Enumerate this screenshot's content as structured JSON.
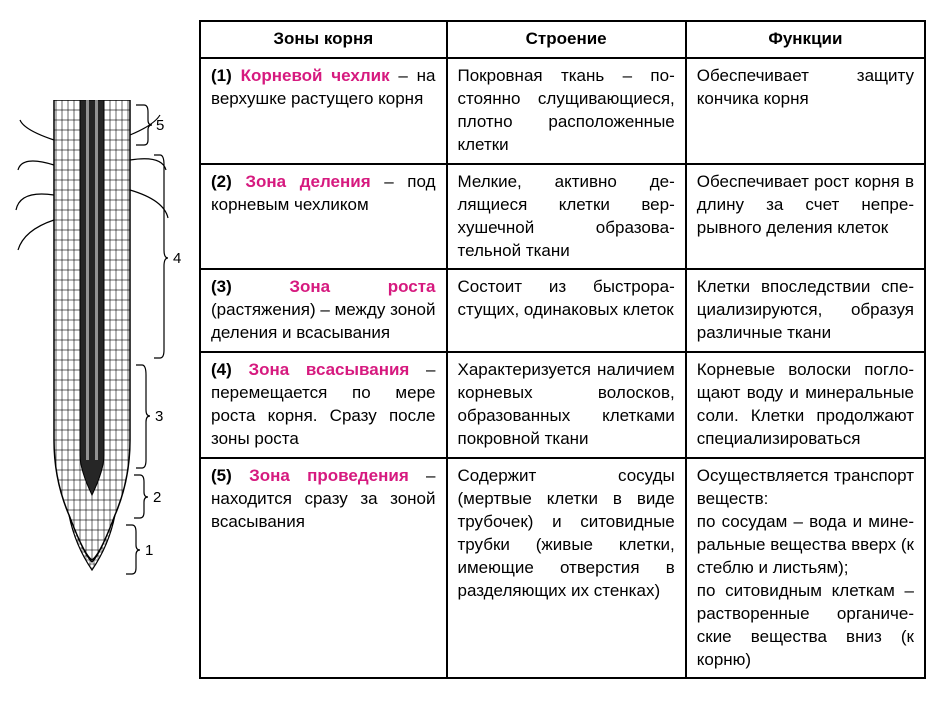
{
  "table": {
    "headers": [
      "Зоны корня",
      "Строение",
      "Функции"
    ],
    "rows": [
      {
        "num": "(1)",
        "name": "Корневой чех­лик",
        "tail": " – на верхушке растущего корня",
        "structure": "Покровная ткань – по­стоянно слущиваю­щиеся, плотно распо­ложенные клетки",
        "function": "Обеспечивает защиту кончика корня",
        "accent": true
      },
      {
        "num": "(2)",
        "name": "Зона деления",
        "tail": " – под корневым чех­ликом",
        "structure": "Мелкие, активно де­лящиеся клетки вер­хушечной образова­тельной ткани",
        "function": "Обеспечивает рост корня в длину за счет непре­рывного деления клеток",
        "accent": true
      },
      {
        "num": "(3)",
        "name": "Зона роста",
        "tail": " (растяжения) – ме­жду зоной деления и всасывания",
        "structure": "Состоит из быстрора­стущих, одинаковых клеток",
        "function": "Клетки впоследствии спе­циализируются, образуя различные ткани",
        "accent": true
      },
      {
        "num": "(4)",
        "name": "Зона всасыва­ния",
        "tail": " – перемещает­ся по мере роста корня. Сразу после зоны роста",
        "structure": "Характеризуется на­личием корневых во­лосков, образованных клетками покровной ткани",
        "function": "Корневые волоски погло­щают воду и минеральные соли. Клетки продолжают спе­циализироваться",
        "accent": true
      },
      {
        "num": "(5)",
        "name": "Зона проведе­ния",
        "tail": " – находится сразу за зоной вса­сывания",
        "structure": "Содержит сосуды (мертвые клетки в ви­де трубочек) и сито­видные трубки (живые клетки, имеющие от­верстия в разделяю­щих их стенках)",
        "function": "Осуществляется транс­порт веществ:\nпо сосудам – вода и мине­ральные вещества вверх (к стеблю и листьям);\nпо ситовидным клеткам – растворенные органиче­ские вещества вниз (к корню)",
        "accent": true
      }
    ]
  },
  "diagram": {
    "labels": [
      "1",
      "2",
      "3",
      "4",
      "5"
    ],
    "stroke": "#000000",
    "hatch": "#000000",
    "background": "#ffffff"
  }
}
